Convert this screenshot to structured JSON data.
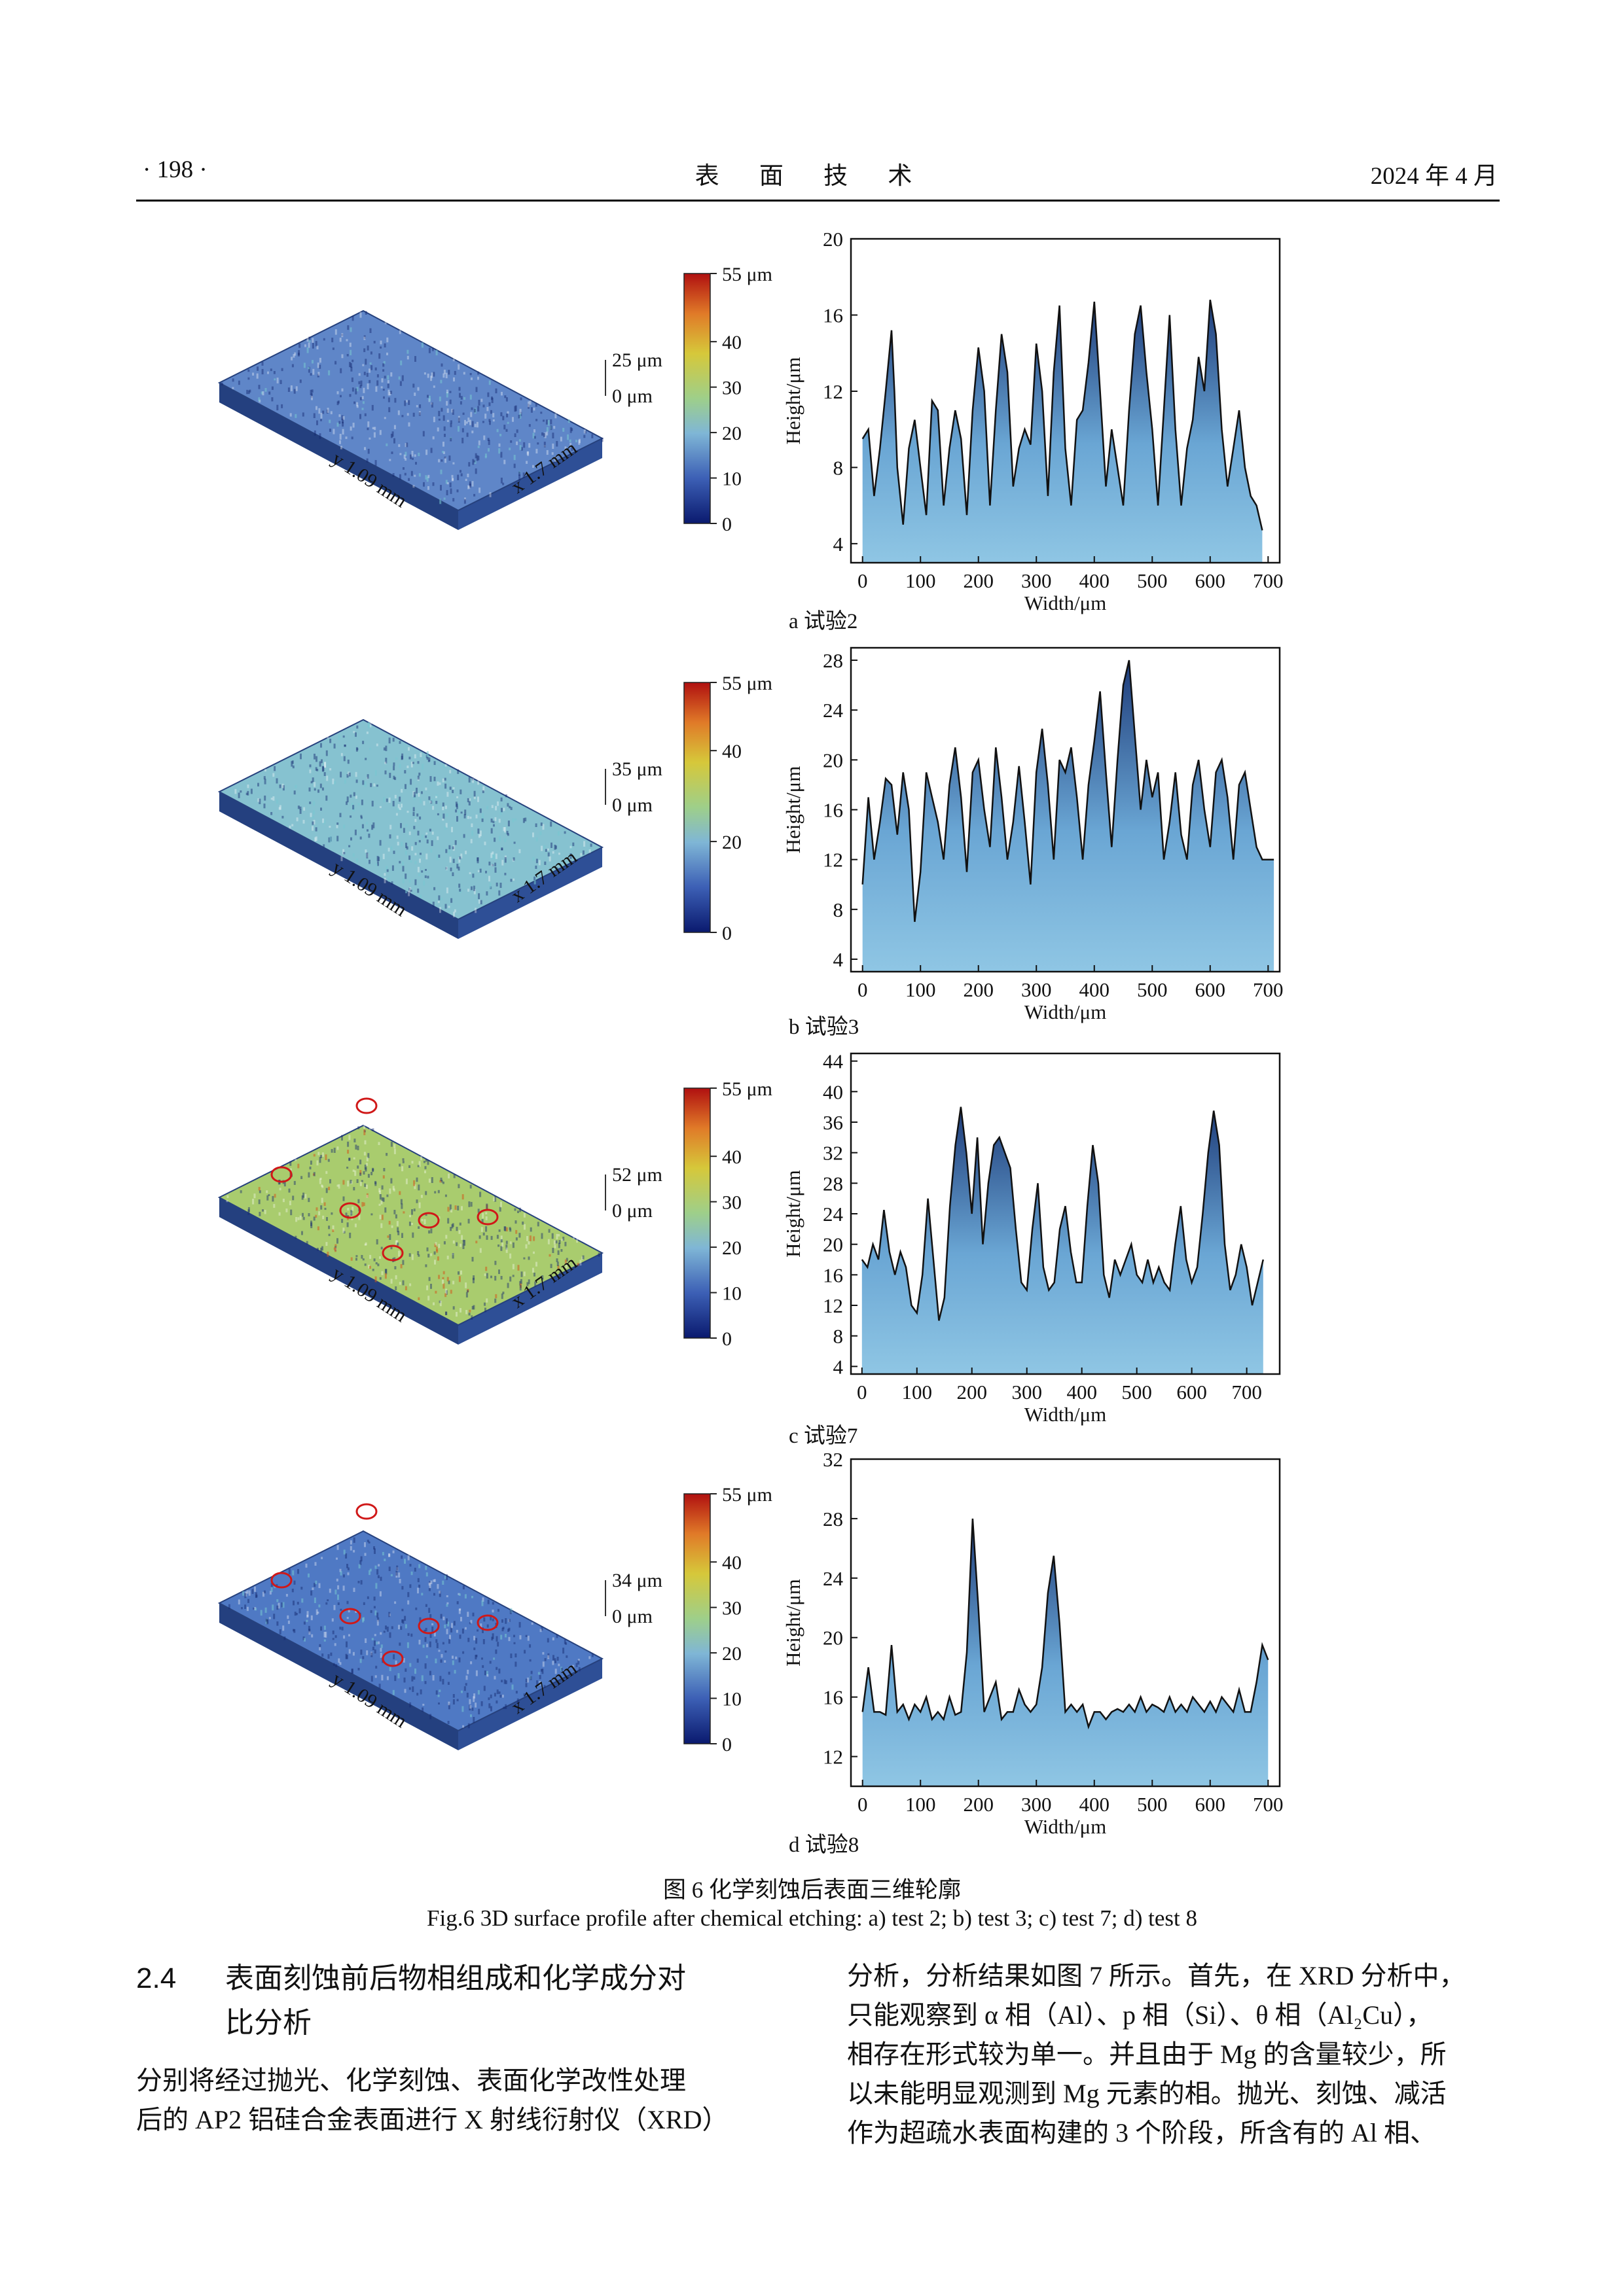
{
  "header": {
    "left": "· 198 ·",
    "center": "表 面 技 术",
    "right": "2024 年 4 月"
  },
  "figure": {
    "panels": [
      {
        "caption": "a  试验2",
        "map3d": {
          "scale_labels": [
            "25 μm",
            "0 μm"
          ],
          "axis_y": "y 1.09 mm",
          "axis_x": "x 1.7 mm",
          "surface_color": "#5f86c8",
          "circles": 0
        },
        "colorbar": {
          "ticks": [
            "55 μm",
            "40",
            "30",
            "20",
            "10",
            "0"
          ],
          "tick_values": [
            55,
            40,
            30,
            20,
            10,
            0
          ]
        },
        "chart_data": {
          "type": "area",
          "xlabel": "Width/μm",
          "ylabel": "Height/μm",
          "xlim": [
            -20,
            720
          ],
          "ylim": [
            3,
            20
          ],
          "xticks": [
            0,
            100,
            200,
            300,
            400,
            500,
            600,
            700
          ],
          "yticks": [
            4,
            8,
            12,
            16,
            20
          ],
          "x": [
            0,
            10,
            20,
            30,
            40,
            50,
            55,
            60,
            70,
            80,
            90,
            100,
            110,
            120,
            130,
            140,
            150,
            160,
            170,
            180,
            190,
            200,
            210,
            220,
            230,
            240,
            250,
            260,
            270,
            280,
            290,
            300,
            310,
            320,
            330,
            340,
            350,
            360,
            370,
            380,
            390,
            400,
            410,
            420,
            430,
            440,
            450,
            460,
            470,
            480,
            490,
            500,
            510,
            520,
            530,
            540,
            550,
            560,
            570,
            580,
            590,
            600,
            610,
            620,
            630,
            640,
            650,
            660,
            670,
            680,
            690
          ],
          "y": [
            9.5,
            10,
            6.5,
            9,
            12,
            15.2,
            12,
            8,
            5,
            9,
            10.5,
            8,
            5.5,
            11.5,
            11,
            6,
            9,
            11,
            9.5,
            5.5,
            11,
            14.3,
            12,
            6,
            11,
            15,
            13,
            7,
            9,
            10,
            9.2,
            14.5,
            12,
            6.5,
            13,
            16.5,
            9,
            6,
            10.5,
            11,
            13.5,
            16.7,
            12,
            7,
            10,
            8,
            6,
            11,
            15,
            16.5,
            13,
            10,
            6,
            11,
            16,
            10,
            6,
            9,
            10.5,
            13.8,
            12,
            16.8,
            15,
            10,
            7,
            9,
            11,
            8,
            6.5,
            6,
            4.7
          ]
        }
      },
      {
        "caption": "b  试验3",
        "map3d": {
          "scale_labels": [
            "35 μm",
            "0 μm"
          ],
          "axis_y": "y 1.09 mm",
          "axis_x": "x 1.7 mm",
          "surface_color": "#86c2d0",
          "circles": 0
        },
        "colorbar": {
          "ticks": [
            "55 μm",
            "40",
            "20",
            "0"
          ],
          "tick_values": [
            55,
            40,
            20,
            0
          ]
        },
        "chart_data": {
          "type": "area",
          "xlabel": "Width/μm",
          "ylabel": "Height/μm",
          "xlim": [
            -20,
            720
          ],
          "ylim": [
            3,
            29
          ],
          "xticks": [
            0,
            100,
            200,
            300,
            400,
            500,
            600,
            700
          ],
          "yticks": [
            4,
            8,
            12,
            16,
            20,
            24,
            28
          ],
          "x": [
            0,
            10,
            20,
            30,
            40,
            50,
            60,
            70,
            80,
            90,
            100,
            110,
            120,
            130,
            140,
            150,
            160,
            170,
            180,
            190,
            200,
            210,
            220,
            230,
            240,
            250,
            260,
            270,
            280,
            290,
            300,
            310,
            320,
            330,
            340,
            350,
            360,
            370,
            380,
            390,
            400,
            410,
            420,
            430,
            440,
            450,
            460,
            470,
            480,
            490,
            500,
            510,
            520,
            530,
            540,
            550,
            560,
            570,
            580,
            590,
            600,
            610,
            620,
            630,
            640,
            650,
            660,
            670,
            680,
            690,
            700,
            710
          ],
          "y": [
            10,
            17,
            12,
            15,
            18.5,
            18,
            14,
            19,
            16,
            7,
            11,
            19,
            17,
            15,
            12,
            18,
            21,
            17,
            11,
            19,
            20,
            16,
            13,
            21,
            17,
            12,
            15,
            19.5,
            15,
            10,
            19,
            22.5,
            18,
            12,
            20,
            19,
            21,
            17,
            12,
            18,
            21.5,
            25.5,
            19,
            13,
            20,
            26,
            28,
            22,
            16,
            20,
            17,
            19,
            12,
            15,
            19,
            14,
            12,
            18,
            20,
            16,
            13,
            19,
            20,
            17,
            12,
            18,
            19,
            16,
            13,
            12,
            12,
            12
          ]
        }
      },
      {
        "caption": "c  试验7",
        "map3d": {
          "scale_labels": [
            "52 μm",
            "0 μm"
          ],
          "axis_y": "y 1.09 mm",
          "axis_x": "x 1.7 mm",
          "surface_color": "#a9cc6e",
          "circles": 6
        },
        "colorbar": {
          "ticks": [
            "55 μm",
            "40",
            "30",
            "20",
            "10",
            "0"
          ],
          "tick_values": [
            55,
            40,
            30,
            20,
            10,
            0
          ]
        },
        "chart_data": {
          "type": "area",
          "xlabel": "Width/μm",
          "ylabel": "Height/μm",
          "xlim": [
            -20,
            760
          ],
          "ylim": [
            3,
            45
          ],
          "xticks": [
            0,
            100,
            200,
            300,
            400,
            500,
            600,
            700
          ],
          "yticks": [
            4,
            8,
            12,
            16,
            20,
            24,
            28,
            32,
            36,
            40,
            44
          ],
          "x": [
            0,
            10,
            20,
            30,
            40,
            50,
            60,
            70,
            80,
            90,
            100,
            110,
            120,
            130,
            140,
            150,
            160,
            170,
            180,
            190,
            200,
            210,
            220,
            230,
            240,
            250,
            260,
            270,
            280,
            290,
            300,
            310,
            320,
            330,
            340,
            350,
            360,
            370,
            380,
            390,
            400,
            410,
            420,
            430,
            440,
            450,
            460,
            470,
            480,
            490,
            500,
            510,
            520,
            530,
            540,
            550,
            560,
            570,
            580,
            590,
            600,
            610,
            620,
            630,
            640,
            650,
            660,
            670,
            680,
            690,
            700,
            710,
            720,
            730
          ],
          "y": [
            18,
            17,
            20,
            18,
            24.5,
            19,
            16,
            19,
            17,
            12,
            11,
            16,
            26,
            18,
            10,
            13,
            25,
            33,
            38,
            32,
            24,
            34,
            20,
            28,
            33,
            34,
            32,
            30,
            22,
            15,
            14,
            22,
            28,
            17,
            14,
            15,
            22,
            25,
            19,
            15,
            15,
            25,
            33,
            28,
            16,
            13,
            18,
            16,
            18,
            20,
            16,
            15,
            18,
            15,
            17,
            15,
            14,
            20,
            25,
            18,
            15,
            17,
            24,
            32,
            37.5,
            33,
            20,
            14,
            16,
            20,
            17,
            12,
            15,
            18
          ]
        }
      },
      {
        "caption": "d  试验8",
        "map3d": {
          "scale_labels": [
            "34 μm",
            "0 μm"
          ],
          "axis_y": "y 1.09 mm",
          "axis_x": "x 1.7 mm",
          "surface_color": "#4f79c4",
          "circles": 6
        },
        "colorbar": {
          "ticks": [
            "55 μm",
            "40",
            "30",
            "20",
            "10",
            "0"
          ],
          "tick_values": [
            55,
            40,
            30,
            20,
            10,
            0
          ]
        },
        "chart_data": {
          "type": "area",
          "xlabel": "Width/μm",
          "ylabel": "Height/μm",
          "xlim": [
            -20,
            720
          ],
          "ylim": [
            10,
            32
          ],
          "xticks": [
            0,
            100,
            200,
            300,
            400,
            500,
            600,
            700
          ],
          "yticks": [
            12,
            16,
            20,
            24,
            28,
            32
          ],
          "x": [
            0,
            10,
            20,
            30,
            40,
            50,
            60,
            70,
            80,
            90,
            100,
            110,
            120,
            130,
            140,
            150,
            160,
            170,
            180,
            190,
            200,
            210,
            220,
            230,
            240,
            250,
            260,
            270,
            280,
            290,
            300,
            310,
            320,
            330,
            340,
            350,
            360,
            370,
            380,
            390,
            400,
            410,
            420,
            430,
            440,
            450,
            460,
            470,
            480,
            490,
            500,
            510,
            520,
            530,
            540,
            550,
            560,
            570,
            580,
            590,
            600,
            610,
            620,
            630,
            640,
            650,
            660,
            670,
            680,
            690,
            700
          ],
          "y": [
            15,
            18,
            15,
            15,
            14.8,
            19.5,
            15,
            15.5,
            14.5,
            15.5,
            15,
            16,
            14.5,
            15,
            14.5,
            16,
            14.8,
            15,
            19,
            28,
            22,
            15,
            16,
            17,
            14.5,
            15,
            15,
            16.5,
            15.5,
            15,
            15.5,
            18,
            23,
            25.5,
            21,
            15,
            15.5,
            15,
            15.5,
            14,
            15,
            15,
            14.5,
            15,
            15.2,
            15,
            15.5,
            15,
            16,
            15,
            15.5,
            15.3,
            15,
            16,
            15,
            15.5,
            15,
            16,
            15.5,
            15,
            15.7,
            15,
            16,
            15.5,
            15,
            16.5,
            15,
            15,
            17,
            19.5,
            18.5
          ]
        }
      }
    ],
    "caption_cn": "图 6    化学刻蚀后表面三维轮廓",
    "caption_en": "Fig.6 3D surface profile after chemical etching: a) test 2; b) test 3; c) test 7; d) test 8"
  },
  "section": {
    "number": "2.4",
    "title_line1": "表面刻蚀前后物相组成和化学成分对",
    "title_line2": "比分析"
  },
  "left_para": [
    "    分别将经过抛光、化学刻蚀、表面化学改性处理",
    "后的 AP2 铝硅合金表面进行 X 射线衍射仪（XRD）"
  ],
  "right_para": [
    "分析，分析结果如图 7 所示。首先，在 XRD 分析中，",
    "只能观察到 α 相（Al）、p 相（Si）、θ 相（Al₂Cu），",
    "相存在形式较为单一。并且由于 Mg 的含量较少，所",
    "以未能明显观测到 Mg 元素的相。抛光、刻蚀、减活",
    "作为超疏水表面构建的 3 个阶段，所含有的 Al 相、"
  ]
}
